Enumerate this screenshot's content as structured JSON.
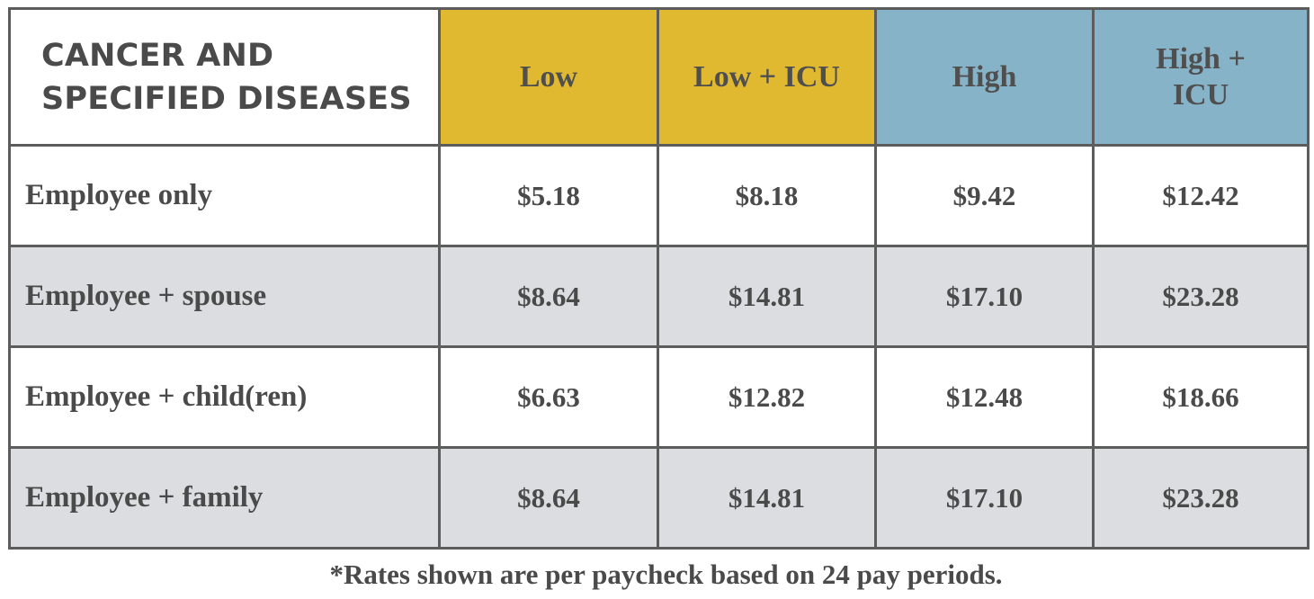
{
  "table": {
    "title_lines": [
      "CANCER AND",
      "SPECIFIED DISEASES"
    ],
    "columns": [
      {
        "label": "Low",
        "color": "#e0b930"
      },
      {
        "label": "Low + ICU",
        "color": "#e0b930"
      },
      {
        "label": "High",
        "color": "#87b3c8"
      },
      {
        "label": "High + ICU",
        "color": "#87b3c8"
      }
    ],
    "rows": [
      {
        "label": "Employee only",
        "values": [
          "$5.18",
          "$8.18",
          "$9.42",
          "$12.42"
        ],
        "shade": "white"
      },
      {
        "label": "Employee + spouse",
        "values": [
          "$8.64",
          "$14.81",
          "$17.10",
          "$23.28"
        ],
        "shade": "gray"
      },
      {
        "label": "Employee + child(ren)",
        "values": [
          "$6.63",
          "$12.82",
          "$12.48",
          "$18.66"
        ],
        "shade": "white"
      },
      {
        "label": "Employee + family",
        "values": [
          "$8.64",
          "$14.81",
          "$17.10",
          "$23.28"
        ],
        "shade": "gray"
      }
    ]
  },
  "footnote": "*Rates shown are per paycheck based on 24 pay periods.",
  "colors": {
    "gold": "#e0b930",
    "blue": "#87b3c8",
    "row_gray": "#dcdde0",
    "border": "#5c5c5c",
    "text": "#4a4a4a"
  }
}
